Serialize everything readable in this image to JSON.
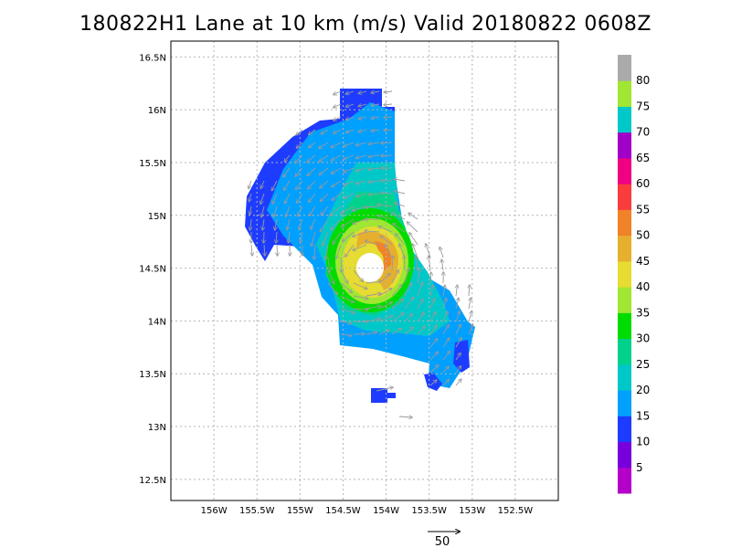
{
  "title": "180822H1 Lane at 10 km (m/s) Valid 20180822 0608Z",
  "map": {
    "lon_range": [
      -156.5,
      -152.0
    ],
    "lat_range": [
      12.3,
      16.65
    ],
    "lon_ticks": [
      "156W",
      "155.5W",
      "155W",
      "154.5W",
      "154W",
      "153.5W",
      "153W",
      "152.5W"
    ],
    "lon_tick_values": [
      -156,
      -155.5,
      -155,
      -154.5,
      -154,
      -153.5,
      -153,
      -152.5
    ],
    "lat_ticks": [
      "12.5N",
      "13N",
      "13.5N",
      "14N",
      "14.5N",
      "15N",
      "15.5N",
      "16N",
      "16.5N"
    ],
    "lat_tick_values": [
      12.5,
      13,
      13.5,
      14,
      14.5,
      15,
      15.5,
      16,
      16.5
    ],
    "grid": true,
    "storm_center": {
      "lon": -154.2,
      "lat": 14.55
    }
  },
  "colorbar": {
    "labels": [
      "5",
      "10",
      "15",
      "20",
      "25",
      "30",
      "35",
      "40",
      "45",
      "50",
      "55",
      "60",
      "65",
      "70",
      "75",
      "80"
    ],
    "colors": [
      "#b400c8",
      "#7800dc",
      "#1e3cff",
      "#00a0ff",
      "#00c8c8",
      "#00d28c",
      "#00dc00",
      "#a0e632",
      "#e6dc32",
      "#e6af2d",
      "#f08228",
      "#fa3c3c",
      "#f00082",
      "#a000c8",
      "#00c8c8",
      "#a0e632",
      "#aaaaaa"
    ]
  },
  "reference_vector": {
    "label": "50"
  }
}
